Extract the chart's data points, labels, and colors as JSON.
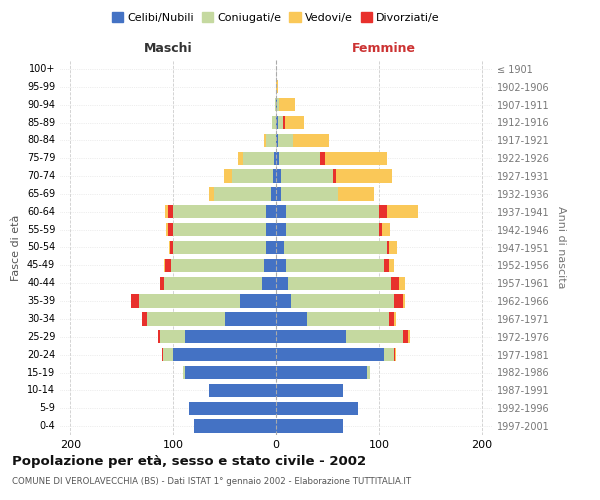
{
  "age_groups": [
    "0-4",
    "5-9",
    "10-14",
    "15-19",
    "20-24",
    "25-29",
    "30-34",
    "35-39",
    "40-44",
    "45-49",
    "50-54",
    "55-59",
    "60-64",
    "65-69",
    "70-74",
    "75-79",
    "80-84",
    "85-89",
    "90-94",
    "95-99",
    "100+"
  ],
  "birth_years": [
    "1997-2001",
    "1992-1996",
    "1987-1991",
    "1982-1986",
    "1977-1981",
    "1972-1976",
    "1967-1971",
    "1962-1966",
    "1957-1961",
    "1952-1956",
    "1947-1951",
    "1942-1946",
    "1937-1941",
    "1932-1936",
    "1927-1931",
    "1922-1926",
    "1917-1921",
    "1912-1916",
    "1907-1911",
    "1902-1906",
    "≤ 1901"
  ],
  "maschi": {
    "celibi": [
      80,
      85,
      65,
      88,
      100,
      88,
      50,
      35,
      14,
      12,
      10,
      10,
      10,
      5,
      3,
      2,
      0,
      0,
      0,
      0,
      0
    ],
    "coniugati": [
      0,
      0,
      0,
      2,
      10,
      25,
      75,
      98,
      95,
      90,
      90,
      90,
      90,
      55,
      40,
      30,
      10,
      4,
      1,
      0,
      0
    ],
    "vedovi": [
      0,
      0,
      0,
      0,
      0,
      0,
      0,
      0,
      0,
      1,
      1,
      2,
      3,
      5,
      8,
      5,
      2,
      0,
      0,
      0,
      0
    ],
    "divorziati": [
      0,
      0,
      0,
      0,
      1,
      2,
      5,
      8,
      4,
      6,
      3,
      5,
      5,
      0,
      0,
      0,
      0,
      0,
      0,
      0,
      0
    ]
  },
  "femmine": {
    "nubili": [
      65,
      80,
      65,
      88,
      105,
      68,
      30,
      15,
      12,
      10,
      8,
      10,
      10,
      5,
      5,
      3,
      2,
      2,
      1,
      0,
      0
    ],
    "coniugate": [
      0,
      0,
      0,
      3,
      10,
      55,
      80,
      100,
      100,
      95,
      100,
      90,
      90,
      55,
      50,
      40,
      15,
      5,
      2,
      0,
      0
    ],
    "vedove": [
      0,
      0,
      0,
      0,
      1,
      2,
      2,
      2,
      5,
      5,
      8,
      8,
      30,
      35,
      55,
      60,
      35,
      18,
      15,
      2,
      0
    ],
    "divorziate": [
      0,
      0,
      0,
      0,
      1,
      5,
      5,
      8,
      8,
      5,
      2,
      3,
      8,
      0,
      3,
      5,
      0,
      2,
      0,
      0,
      0
    ]
  },
  "colors": {
    "celibi_nubili": "#4472C4",
    "coniugati": "#C5D9A0",
    "vedovi": "#FAC858",
    "divorziati": "#E8302C"
  },
  "title": "Popolazione per età, sesso e stato civile - 2002",
  "subtitle": "COMUNE DI VEROLAVECCHIA (BS) - Dati ISTAT 1° gennaio 2002 - Elaborazione TUTTITALIA.IT",
  "xlabel_left": "Maschi",
  "xlabel_right": "Femmine",
  "ylabel_left": "Fasce di età",
  "ylabel_right": "Anni di nascita",
  "xlim": 210,
  "bg_color": "#FFFFFF",
  "grid_color": "#CCCCCC"
}
